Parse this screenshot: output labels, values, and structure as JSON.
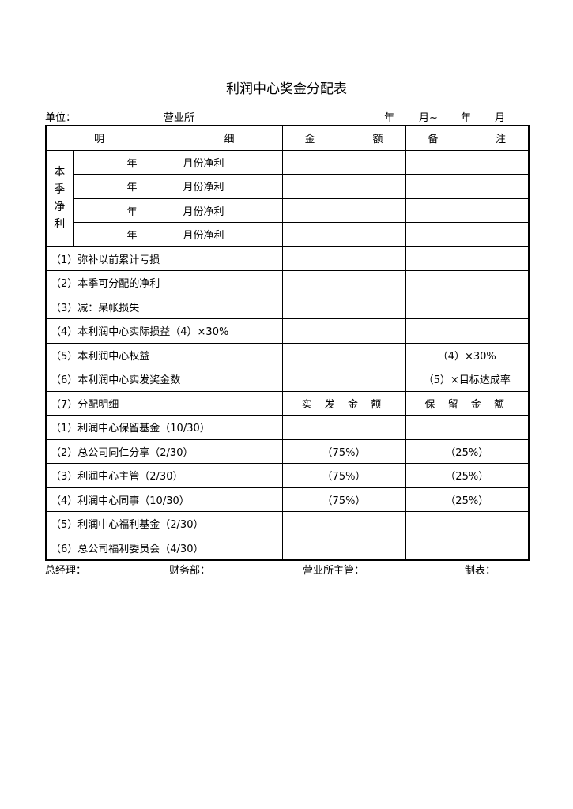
{
  "title": "利润中心奖金分配表",
  "meta": {
    "unit_label": "单位：",
    "unit_value": "营业所",
    "date_year1": "年",
    "date_month1": "月~",
    "date_year2": "年",
    "date_month2": "月"
  },
  "header": {
    "detail_a": "明",
    "detail_b": "细",
    "amount_a": "金",
    "amount_b": "额",
    "note_a": "备",
    "note_b": "注"
  },
  "quarter": {
    "label": [
      "本",
      "季",
      "净",
      "利"
    ],
    "rows": [
      {
        "year": "年",
        "month": "月份净利"
      },
      {
        "year": "年",
        "month": "月份净利"
      },
      {
        "year": "年",
        "month": "月份净利"
      },
      {
        "year": "年",
        "month": "月份净利"
      }
    ]
  },
  "rows": [
    {
      "item": "（1）弥补以前累计亏损",
      "amount": "",
      "note": ""
    },
    {
      "item": "（2）本季可分配的净利",
      "amount": "",
      "note": ""
    },
    {
      "item": "（3）减：呆帐损失",
      "amount": "",
      "note": ""
    },
    {
      "item": "（4）本利润中心实际损益（4）×30%",
      "amount": "",
      "note": ""
    },
    {
      "item": "（5）本利润中心权益",
      "amount": "",
      "note": "（4）×30%"
    },
    {
      "item": "（6）本利润中心实发奖金数",
      "amount": "",
      "note": "（5）×目标达成率"
    },
    {
      "item": "（7）分配明细",
      "amount": "实 发 金 额",
      "note": "保 留 金 额"
    },
    {
      "item": "（1）利润中心保留基金（10/30）",
      "amount": "",
      "note": ""
    },
    {
      "item": "（2）总公司同仁分享（2/30）",
      "amount": "（75%）",
      "note": "（25%）"
    },
    {
      "item": "（3）利润中心主管（2/30）",
      "amount": "（75%）",
      "note": "（25%）"
    },
    {
      "item": "（4）利润中心同事（10/30）",
      "amount": "（75%）",
      "note": "（25%）"
    },
    {
      "item": "（5）利润中心福利基金（2/30）",
      "amount": "",
      "note": ""
    },
    {
      "item": "（6）总公司福利委员会（4/30）",
      "amount": "",
      "note": ""
    }
  ],
  "footer": {
    "gm": "总经理：",
    "finance": "财务部：",
    "branch_manager": "营业所主管：",
    "preparer": "制表："
  }
}
